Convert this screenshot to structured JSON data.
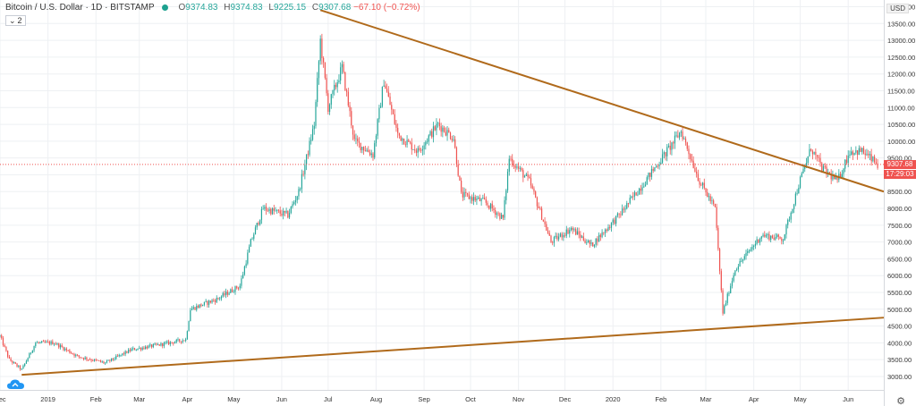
{
  "legend": {
    "title": "Bitcoin / U.S. Dollar · 1D · BITSTAMP",
    "open_key": "O",
    "open": "9374.83",
    "high_key": "H",
    "high": "9374.83",
    "low_key": "L",
    "low": "9225.15",
    "close_key": "C",
    "close": "9307.68",
    "change": "−67.10 (−0.72%)"
  },
  "indicator_badge": {
    "arrow": "⌄",
    "count": "2"
  },
  "currency": "USD",
  "last_price": {
    "value": "9307.68",
    "countdown": "17:29:03",
    "color": "#ef5350"
  },
  "colors": {
    "up": "#26a69a",
    "down": "#ef5350",
    "trendline": "#b06a1b",
    "grid": "#eef0f3"
  },
  "icons": {
    "logo": "tradingview-cloud-icon",
    "settings": "gear-icon"
  },
  "chart_data": {
    "type": "candlestick",
    "title": "Bitcoin / U.S. Dollar",
    "ylim": [
      2600,
      14200
    ],
    "y_ticks": [
      3000,
      3500,
      4000,
      4500,
      5000,
      5500,
      6000,
      6500,
      7000,
      7500,
      8000,
      8500,
      9000,
      9500,
      10000,
      10500,
      11000,
      11500,
      12000,
      12500,
      13000,
      13500,
      14000
    ],
    "y_tick_labels": [
      "3000.00",
      "3500.00",
      "4000.00",
      "4500.00",
      "5000.00",
      "5500.00",
      "6000.00",
      "6500.00",
      "7000.00",
      "7500.00",
      "8000.00",
      "8500.00",
      "9000.00",
      "9500.00",
      "10000.00",
      "10500.00",
      "11000.00",
      "11500.00",
      "12000.00",
      "12500.00",
      "13000.00",
      "13500.00",
      "14000.00"
    ],
    "x_range": [
      "2018-12-01",
      "2020-06-24"
    ],
    "x_ticks": [
      {
        "date": "2018-12-01",
        "label": "Dec"
      },
      {
        "date": "2019-01-01",
        "label": "2019"
      },
      {
        "date": "2019-02-01",
        "label": "Feb"
      },
      {
        "date": "2019-03-01",
        "label": "Mar"
      },
      {
        "date": "2019-04-01",
        "label": "Apr"
      },
      {
        "date": "2019-05-01",
        "label": "May"
      },
      {
        "date": "2019-06-01",
        "label": "Jun"
      },
      {
        "date": "2019-07-01",
        "label": "Jul"
      },
      {
        "date": "2019-08-01",
        "label": "Aug"
      },
      {
        "date": "2019-09-01",
        "label": "Sep"
      },
      {
        "date": "2019-10-01",
        "label": "Oct"
      },
      {
        "date": "2019-11-01",
        "label": "Nov"
      },
      {
        "date": "2019-12-01",
        "label": "Dec"
      },
      {
        "date": "2020-01-01",
        "label": "2020"
      },
      {
        "date": "2020-02-01",
        "label": "Feb"
      },
      {
        "date": "2020-03-01",
        "label": "Mar"
      },
      {
        "date": "2020-04-01",
        "label": "Apr"
      },
      {
        "date": "2020-05-01",
        "label": "May"
      },
      {
        "date": "2020-06-01",
        "label": "Jun"
      }
    ],
    "close_path": [
      [
        "2018-12-01",
        4200
      ],
      [
        "2018-12-07",
        3500
      ],
      [
        "2018-12-15",
        3200
      ],
      [
        "2018-12-24",
        4000
      ],
      [
        "2019-01-05",
        4000
      ],
      [
        "2019-01-20",
        3600
      ],
      [
        "2019-02-07",
        3400
      ],
      [
        "2019-02-24",
        3800
      ],
      [
        "2019-03-15",
        3950
      ],
      [
        "2019-03-31",
        4100
      ],
      [
        "2019-04-03",
        5000
      ],
      [
        "2019-04-20",
        5300
      ],
      [
        "2019-05-05",
        5700
      ],
      [
        "2019-05-12",
        7000
      ],
      [
        "2019-05-20",
        8000
      ],
      [
        "2019-06-05",
        7800
      ],
      [
        "2019-06-12",
        8500
      ],
      [
        "2019-06-22",
        10500
      ],
      [
        "2019-06-26",
        13000
      ],
      [
        "2019-07-01",
        11000
      ],
      [
        "2019-07-10",
        12200
      ],
      [
        "2019-07-18",
        10000
      ],
      [
        "2019-07-30",
        9600
      ],
      [
        "2019-08-06",
        11800
      ],
      [
        "2019-08-15",
        10200
      ],
      [
        "2019-08-28",
        9700
      ],
      [
        "2019-09-10",
        10500
      ],
      [
        "2019-09-20",
        10100
      ],
      [
        "2019-09-25",
        8400
      ],
      [
        "2019-10-10",
        8200
      ],
      [
        "2019-10-22",
        7700
      ],
      [
        "2019-10-26",
        9500
      ],
      [
        "2019-11-08",
        8800
      ],
      [
        "2019-11-22",
        7000
      ],
      [
        "2019-12-05",
        7400
      ],
      [
        "2019-12-18",
        6900
      ],
      [
        "2020-01-05",
        7800
      ],
      [
        "2020-01-20",
        8700
      ],
      [
        "2020-02-08",
        9900
      ],
      [
        "2020-02-14",
        10300
      ],
      [
        "2020-02-26",
        8800
      ],
      [
        "2020-03-07",
        8000
      ],
      [
        "2020-03-12",
        4900
      ],
      [
        "2020-03-20",
        6200
      ],
      [
        "2020-04-06",
        7200
      ],
      [
        "2020-04-20",
        7100
      ],
      [
        "2020-04-30",
        8700
      ],
      [
        "2020-05-08",
        9800
      ],
      [
        "2020-05-15",
        9200
      ],
      [
        "2020-05-25",
        8800
      ],
      [
        "2020-06-02",
        9700
      ],
      [
        "2020-06-10",
        9700
      ],
      [
        "2020-06-20",
        9300
      ]
    ],
    "trendlines": [
      {
        "name": "resistance",
        "from": [
          "2019-06-26",
          13900
        ],
        "to": [
          "2020-06-24",
          8500
        ]
      },
      {
        "name": "support",
        "from": [
          "2018-12-15",
          3050
        ],
        "to": [
          "2020-06-24",
          4750
        ]
      }
    ],
    "current_price": 9307.68
  }
}
